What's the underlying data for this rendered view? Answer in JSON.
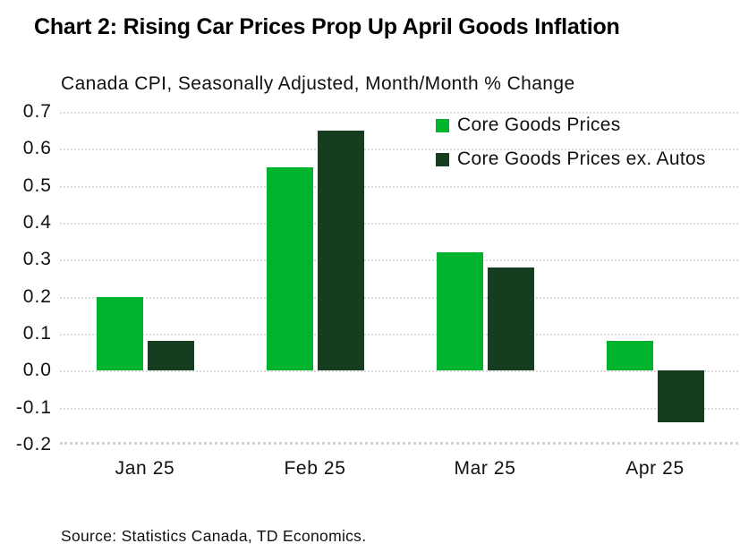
{
  "title": "Chart 2: Rising Car Prices Prop Up April Goods Inflation",
  "subtitle": "Canada CPI, Seasonally Adjusted, Month/Month % Change",
  "source": "Source: Statistics Canada, TD Economics.",
  "colors": {
    "core_goods": "#00b32c",
    "core_goods_ex_autos": "#173d21",
    "gridline": "#dcdcdc",
    "text": "#111111"
  },
  "chart_data": {
    "type": "bar",
    "title": "Chart 2: Rising Car Prices Prop Up April Goods Inflation",
    "subtitle": "Canada CPI, Seasonally Adjusted, Month/Month % Change",
    "categories": [
      "Jan 25",
      "Feb 25",
      "Mar 25",
      "Apr 25"
    ],
    "series": [
      {
        "name": "Core Goods Prices",
        "color": "#00b32c",
        "values": [
          0.2,
          0.55,
          0.32,
          0.08
        ]
      },
      {
        "name": "Core Goods Prices ex. Autos",
        "color": "#173d21",
        "values": [
          0.08,
          0.65,
          0.28,
          -0.14
        ]
      }
    ],
    "xlabel": "",
    "ylabel": "",
    "ylim": [
      -0.2,
      0.7
    ],
    "ytick_step": 0.1,
    "ytick_format": "one_decimal",
    "grid": true,
    "gridline_style": "dotted",
    "legend_position": "top-right-inside",
    "source": "Source: Statistics Canada, TD Economics."
  }
}
